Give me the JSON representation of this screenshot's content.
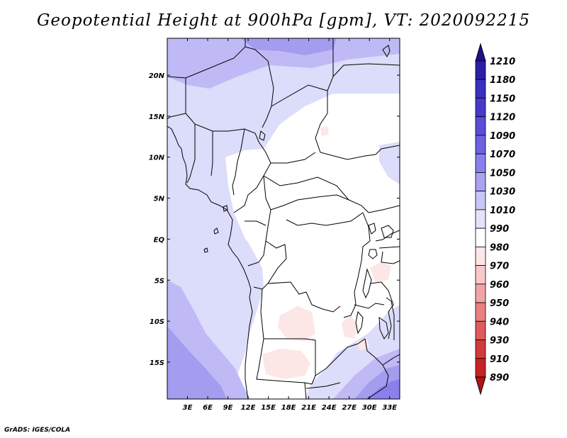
{
  "title": "Geopotential Height at 900hPa [gpm], VT: 2020092215",
  "credit": "GrADS: IGES/COLA",
  "map": {
    "lon_ticks": [
      "3E",
      "6E",
      "9E",
      "12E",
      "15E",
      "18E",
      "21E",
      "24E",
      "27E",
      "30E",
      "33E"
    ],
    "lat_ticks": [
      "20N",
      "15N",
      "10N",
      "5N",
      "EQ",
      "5S",
      "10S",
      "15S"
    ],
    "lon_range": [
      0,
      34.5
    ],
    "lat_range": [
      -19.5,
      24.5
    ]
  },
  "colorbar": {
    "levels": [
      "1210",
      "1180",
      "1150",
      "1120",
      "1090",
      "1070",
      "1050",
      "1030",
      "1010",
      "990",
      "980",
      "970",
      "960",
      "950",
      "940",
      "930",
      "910",
      "890"
    ],
    "colors": [
      "#1f0f8f",
      "#2a1fa8",
      "#3a2fbf",
      "#4838cc",
      "#5a4cd9",
      "#6e62e2",
      "#8a80ec",
      "#aaa3f2",
      "#c8c5f7",
      "#e3e2fb",
      "#ffffff",
      "#fde6e6",
      "#f9c8c8",
      "#f2a4a4",
      "#e88080",
      "#de5c5c",
      "#d23b3b",
      "#c62424",
      "#b31414"
    ]
  }
}
